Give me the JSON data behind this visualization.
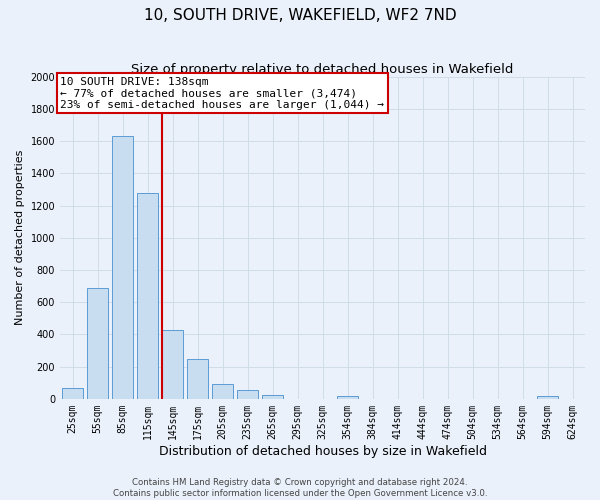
{
  "title": "10, SOUTH DRIVE, WAKEFIELD, WF2 7ND",
  "subtitle": "Size of property relative to detached houses in Wakefield",
  "xlabel": "Distribution of detached houses by size in Wakefield",
  "ylabel": "Number of detached properties",
  "bar_color": "#c9ddf0",
  "bar_edge_color": "#5b9bd5",
  "categories": [
    "25sqm",
    "55sqm",
    "85sqm",
    "115sqm",
    "145sqm",
    "175sqm",
    "205sqm",
    "235sqm",
    "265sqm",
    "295sqm",
    "325sqm",
    "354sqm",
    "384sqm",
    "414sqm",
    "444sqm",
    "474sqm",
    "504sqm",
    "534sqm",
    "564sqm",
    "594sqm",
    "624sqm"
  ],
  "values": [
    70,
    690,
    1630,
    1280,
    430,
    250,
    90,
    55,
    25,
    0,
    0,
    15,
    0,
    0,
    0,
    0,
    0,
    0,
    0,
    15,
    0
  ],
  "vline_color": "#cc0000",
  "vline_x": 3.575,
  "annotation_line1": "10 SOUTH DRIVE: 138sqm",
  "annotation_line2": "← 77% of detached houses are smaller (3,474)",
  "annotation_line3": "23% of semi-detached houses are larger (1,044) →",
  "annotation_box_edge": "#cc0000",
  "ylim": [
    0,
    2000
  ],
  "yticks": [
    0,
    200,
    400,
    600,
    800,
    1000,
    1200,
    1400,
    1600,
    1800,
    2000
  ],
  "footer1": "Contains HM Land Registry data © Crown copyright and database right 2024.",
  "footer2": "Contains public sector information licensed under the Open Government Licence v3.0.",
  "bg_color": "#eaf1fb",
  "grid_color": "#d0dde8",
  "title_fontsize": 11,
  "subtitle_fontsize": 9.5,
  "ylabel_fontsize": 8,
  "xlabel_fontsize": 9,
  "tick_fontsize": 7,
  "annotation_fontsize": 8
}
